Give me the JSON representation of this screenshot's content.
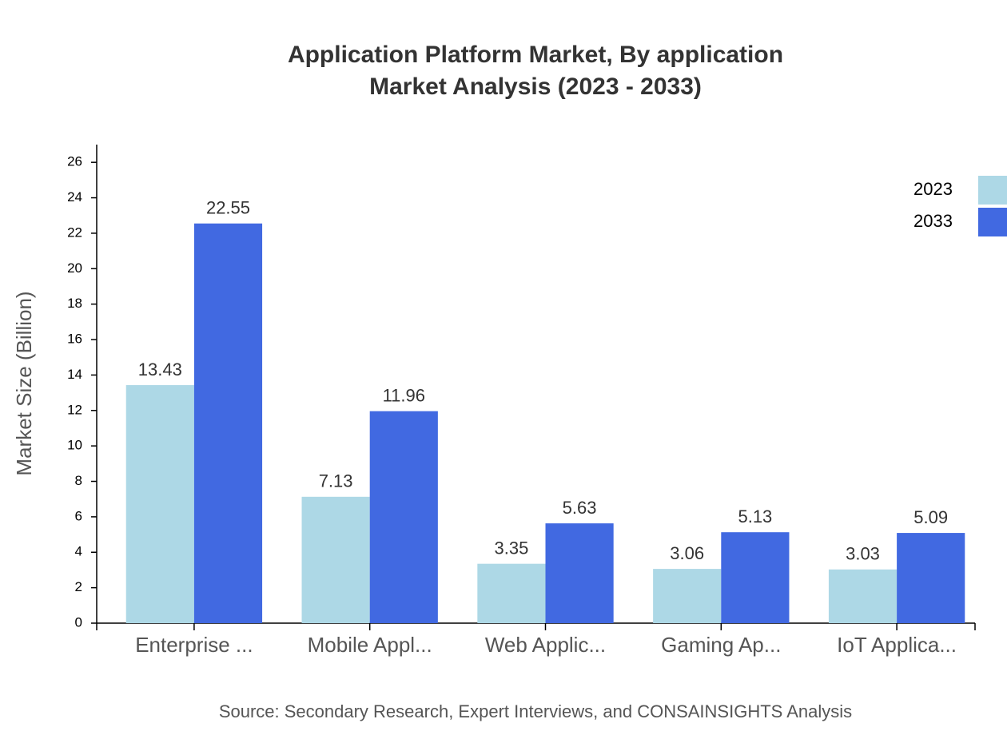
{
  "chart_data": {
    "type": "bar",
    "title": "Application Platform Market, By application",
    "subtitle": "Market Analysis (2023 - 2033)",
    "y_label": "Market Size (Billion)",
    "source": "Source: Secondary Research, Expert Interviews, and CONSAINSIGHTS Analysis",
    "categories": [
      "Enterprise ...",
      "Mobile Appl...",
      "Web Applic...",
      "Gaming Ap...",
      "IoT Applica..."
    ],
    "series": [
      {
        "name": "2023",
        "color": "#add8e6",
        "values": [
          13.43,
          7.13,
          3.35,
          3.06,
          3.03
        ]
      },
      {
        "name": "2033",
        "color": "#4169e1",
        "values": [
          22.55,
          11.96,
          5.63,
          5.13,
          5.09
        ]
      }
    ],
    "ylim": [
      0,
      27
    ],
    "yticks": [
      0,
      2,
      4,
      6,
      8,
      10,
      12,
      14,
      16,
      18,
      20,
      22,
      24,
      26
    ],
    "legend": "top-right"
  }
}
